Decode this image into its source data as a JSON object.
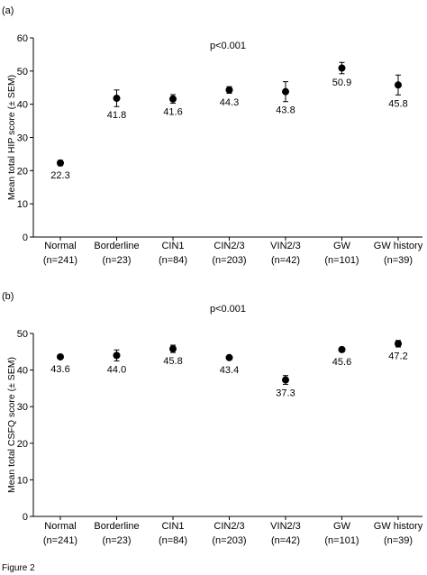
{
  "figure_caption": "Figure 2",
  "chart_data": [
    {
      "panel_label": "(a)",
      "type": "scatter",
      "ylabel": "Mean total HIP score (± SEM)",
      "annotation": "p<0.001",
      "ylim": [
        0,
        60
      ],
      "yticks": [
        "0",
        "10",
        "20",
        "30",
        "40",
        "50",
        "60"
      ],
      "categories": [
        {
          "name": "Normal",
          "n": "(n=241)"
        },
        {
          "name": "Borderline",
          "n": "(n=23)"
        },
        {
          "name": "CIN1",
          "n": "(n=84)"
        },
        {
          "name": "CIN2/3",
          "n": "(n=203)"
        },
        {
          "name": "VIN2/3",
          "n": "(n=42)"
        },
        {
          "name": "GW",
          "n": "(n=101)"
        },
        {
          "name": "GW history",
          "n": "(n=39)"
        }
      ],
      "values": [
        22.3,
        41.8,
        41.6,
        44.3,
        43.8,
        50.9,
        45.8
      ],
      "value_labels": [
        "22.3",
        "41.8",
        "41.6",
        "44.3",
        "43.8",
        "50.9",
        "45.8"
      ],
      "sem": [
        0.8,
        2.5,
        1.3,
        1.0,
        3.0,
        1.7,
        3.0
      ],
      "grid": false
    },
    {
      "panel_label": "(b)",
      "type": "scatter",
      "ylabel": "Mean total CSFQ score (± SEM)",
      "annotation": "p<0.001",
      "ylim": [
        0,
        50
      ],
      "yticks": [
        "0",
        "10",
        "20",
        "30",
        "40",
        "50"
      ],
      "categories": [
        {
          "name": "Normal",
          "n": "(n=241)"
        },
        {
          "name": "Borderline",
          "n": "(n=23)"
        },
        {
          "name": "CIN1",
          "n": "(n=84)"
        },
        {
          "name": "CIN2/3",
          "n": "(n=203)"
        },
        {
          "name": "VIN2/3",
          "n": "(n=42)"
        },
        {
          "name": "GW",
          "n": "(n=101)"
        },
        {
          "name": "GW history",
          "n": "(n=39)"
        }
      ],
      "values": [
        43.6,
        44.0,
        45.8,
        43.4,
        37.3,
        45.6,
        47.2
      ],
      "value_labels": [
        "43.6",
        "44.0",
        "45.8",
        "43.4",
        "37.3",
        "45.6",
        "47.2"
      ],
      "sem": [
        0.5,
        1.5,
        1.0,
        0.5,
        1.2,
        0.6,
        0.9
      ],
      "grid": false
    }
  ]
}
